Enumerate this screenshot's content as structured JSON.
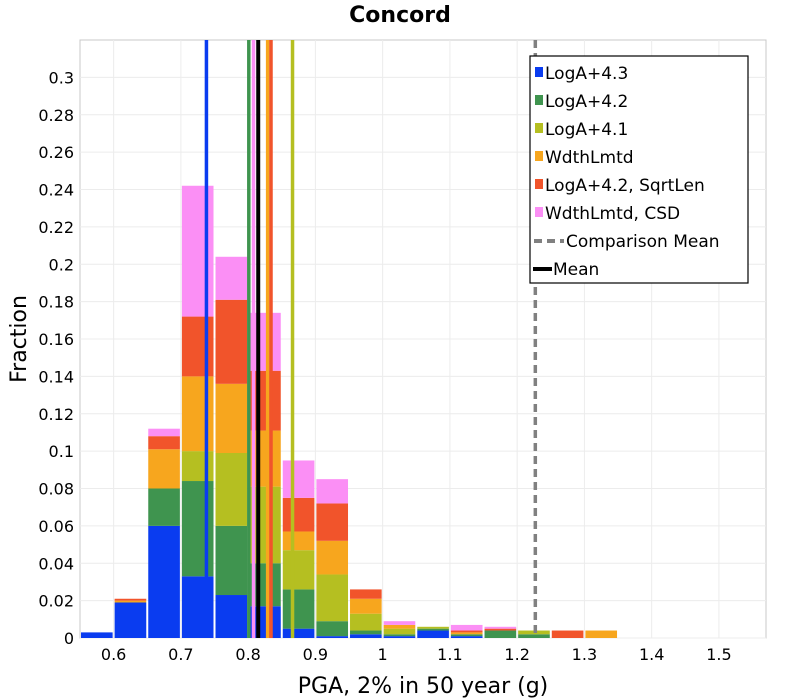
{
  "chart_data": {
    "type": "bar",
    "title": "Concord",
    "xlabel": "PGA, 2% in 50 year (g)",
    "ylabel": "Fraction",
    "xlim": [
      0.55,
      1.57
    ],
    "ylim": [
      0,
      0.32
    ],
    "bin_width": 0.05,
    "x_ticks": [
      "0.6",
      "0.7",
      "0.8",
      "0.9",
      "1",
      "1.1",
      "1.2",
      "1.3",
      "1.4",
      "1.5"
    ],
    "x_tick_values": [
      0.6,
      0.7,
      0.8,
      0.9,
      1.0,
      1.1,
      1.2,
      1.3,
      1.4,
      1.5
    ],
    "y_ticks": [
      "0",
      "0.02",
      "0.04",
      "0.06",
      "0.08",
      "0.1",
      "0.12",
      "0.14",
      "0.16",
      "0.18",
      "0.2",
      "0.22",
      "0.24",
      "0.26",
      "0.28",
      "0.3"
    ],
    "y_tick_values": [
      0,
      0.02,
      0.04,
      0.06,
      0.08,
      0.1,
      0.12,
      0.14,
      0.16,
      0.18,
      0.2,
      0.22,
      0.24,
      0.26,
      0.28,
      0.3
    ],
    "bin_centers": [
      0.575,
      0.625,
      0.675,
      0.725,
      0.775,
      0.825,
      0.875,
      0.925,
      0.975,
      1.025,
      1.075,
      1.125,
      1.175,
      1.225,
      1.275,
      1.325
    ],
    "series": [
      {
        "name": "LogA+4.3",
        "color": "#0a3cf0",
        "values": [
          0.003,
          0.019,
          0.06,
          0.033,
          0.023,
          0.017,
          0.005,
          0.001,
          0.002,
          0.001,
          0.004,
          0.001,
          0,
          0,
          0,
          0
        ]
      },
      {
        "name": "LogA+4.2",
        "color": "#3f944f",
        "values": [
          0,
          0,
          0.02,
          0.051,
          0.037,
          0.023,
          0.021,
          0.008,
          0.002,
          0.001,
          0.001,
          0.001,
          0.004,
          0.002,
          0,
          0
        ]
      },
      {
        "name": "LogA+4.1",
        "color": "#b5bf21",
        "values": [
          0,
          0,
          0,
          0.016,
          0.039,
          0.041,
          0.021,
          0.025,
          0.009,
          0.003,
          0.001,
          0,
          0,
          0.002,
          0,
          0
        ]
      },
      {
        "name": "WdthLmtd",
        "color": "#f7a61e",
        "values": [
          0,
          0.001,
          0.021,
          0.04,
          0.037,
          0.03,
          0.01,
          0.018,
          0.008,
          0.002,
          0,
          0.001,
          0,
          0,
          0,
          0.004
        ]
      },
      {
        "name": "LogA+4.2, SqrtLen",
        "color": "#f1542b",
        "values": [
          0,
          0.001,
          0.007,
          0.032,
          0.045,
          0.032,
          0.018,
          0.02,
          0.005,
          0,
          0,
          0.001,
          0.001,
          0,
          0.004,
          0
        ]
      },
      {
        "name": "WdthLmtd, CSD",
        "color": "#fb8ff5",
        "values": [
          0,
          0,
          0.004,
          0.07,
          0.023,
          0.031,
          0.02,
          0.013,
          0,
          0.002,
          0,
          0.003,
          0.001,
          0,
          0,
          0
        ]
      }
    ],
    "vlines": [
      {
        "name": "LogA+4.3",
        "x": 0.738,
        "color": "#0a3cf0",
        "dashed": false
      },
      {
        "name": "LogA+4.2",
        "x": 0.801,
        "color": "#3f944f",
        "dashed": false
      },
      {
        "name": "WdthLmtd, CSD",
        "x": 0.808,
        "color": "#fb8ff5",
        "dashed": false
      },
      {
        "name": "Mean",
        "x": 0.815,
        "color": "#000000",
        "dashed": false
      },
      {
        "name": "WdthLmtd",
        "x": 0.829,
        "color": "#f7a61e",
        "dashed": false
      },
      {
        "name": "LogA+4.2, SqrtLen",
        "x": 0.834,
        "color": "#f1542b",
        "dashed": false
      },
      {
        "name": "LogA+4.1",
        "x": 0.866,
        "color": "#b5bf21",
        "dashed": false
      },
      {
        "name": "Comparison Mean",
        "x": 1.227,
        "color": "#808080",
        "dashed": true
      }
    ],
    "legend": {
      "position": "top-right",
      "entries": [
        {
          "label": "LogA+4.3",
          "color": "#0a3cf0",
          "kind": "square"
        },
        {
          "label": "LogA+4.2",
          "color": "#3f944f",
          "kind": "square"
        },
        {
          "label": "LogA+4.1",
          "color": "#b5bf21",
          "kind": "square"
        },
        {
          "label": "WdthLmtd",
          "color": "#f7a61e",
          "kind": "square"
        },
        {
          "label": "LogA+4.2, SqrtLen",
          "color": "#f1542b",
          "kind": "square"
        },
        {
          "label": "WdthLmtd, CSD",
          "color": "#fb8ff5",
          "kind": "square"
        },
        {
          "label": "Comparison Mean",
          "color": "#808080",
          "kind": "dashed"
        },
        {
          "label": "Mean",
          "color": "#000000",
          "kind": "line"
        }
      ]
    },
    "grid": true
  }
}
